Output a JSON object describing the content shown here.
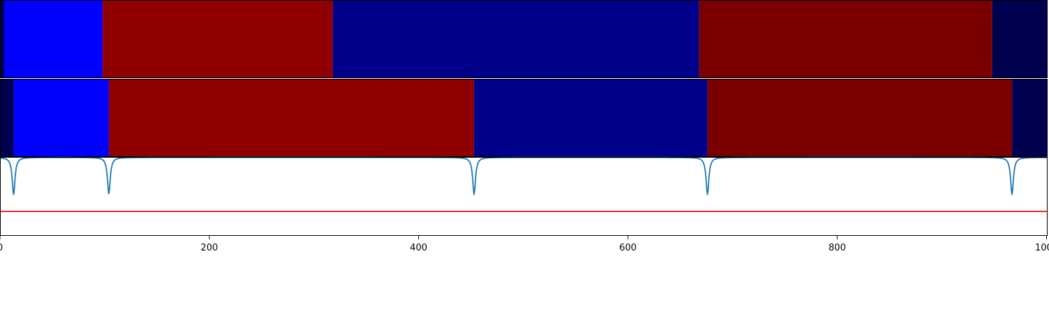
{
  "chart_data": [
    {
      "type": "heatmap",
      "title": "",
      "segments": [
        {
          "start": 0,
          "end": 4,
          "color": "#000050"
        },
        {
          "start": 4,
          "end": 98,
          "color": "#0000ff"
        },
        {
          "start": 98,
          "end": 318,
          "color": "#900000"
        },
        {
          "start": 318,
          "end": 668,
          "color": "#00008a"
        },
        {
          "start": 668,
          "end": 948,
          "color": "#7a0000"
        },
        {
          "start": 948,
          "end": 1001,
          "color": "#000050"
        }
      ]
    },
    {
      "type": "heatmap",
      "title": "",
      "segments": [
        {
          "start": 0,
          "end": 13,
          "color": "#000050"
        },
        {
          "start": 13,
          "end": 104,
          "color": "#0000ff"
        },
        {
          "start": 104,
          "end": 453,
          "color": "#900000"
        },
        {
          "start": 453,
          "end": 676,
          "color": "#00008a"
        },
        {
          "start": 676,
          "end": 967,
          "color": "#7a0000"
        },
        {
          "start": 967,
          "end": 1001,
          "color": "#000050"
        }
      ]
    },
    {
      "type": "line",
      "title": "",
      "xlabel": "",
      "ylabel": "",
      "xlim": [
        0,
        1001
      ],
      "ylim": [
        0,
        1
      ],
      "x_ticks": [
        0,
        200,
        400,
        600,
        800,
        1000
      ],
      "x_tick_labels": [
        "0",
        "200",
        "400",
        "600",
        "800",
        "1000"
      ],
      "series": [
        {
          "color": "#1f77b4",
          "baseline": 0.995,
          "dips": [
            {
              "x": 13,
              "depth": 0.47
            },
            {
              "x": 104,
              "depth": 0.46
            },
            {
              "x": 453,
              "depth": 0.47
            },
            {
              "x": 676,
              "depth": 0.47
            },
            {
              "x": 967,
              "depth": 0.47
            }
          ]
        }
      ],
      "threshold": {
        "y": 0.31,
        "color": "#e00000"
      }
    }
  ]
}
